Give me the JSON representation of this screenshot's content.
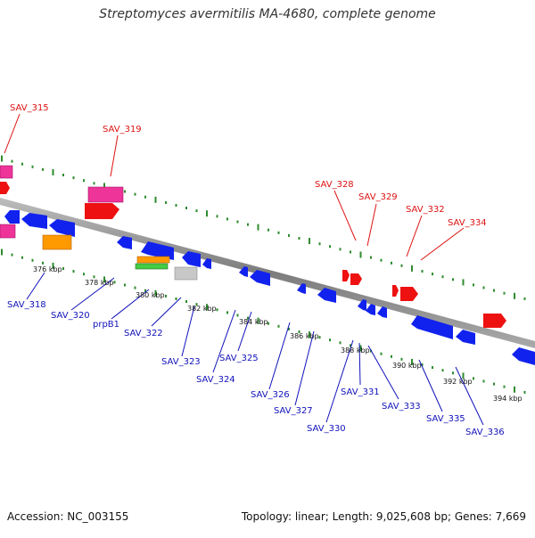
{
  "title": "Streptomyces avermitilis MA-4680, complete genome",
  "footer": {
    "accession": "Accession: NC_003155",
    "summary": "Topology: linear; Length: 9,025,608 bp; Genes: 7,669"
  },
  "colors": {
    "backbone": "#8a8a8a",
    "tick": "#2e8b2e",
    "forward_label": "#dd1111",
    "reverse_label": "#1111bb",
    "red": "#ee1111",
    "pink": "#ee3399",
    "blue": "#1122ee",
    "orange": "#ff9900",
    "green": "#44cc44",
    "gray": "#c8c8c8"
  },
  "ruler_labels": [
    "376 kbp",
    "378 kbp",
    "380 kbp",
    "382 kbp",
    "384 kbp",
    "386 kbp",
    "388 kbp",
    "390 kbp",
    "392 kbp",
    "394 kbp"
  ],
  "forward_labels": [
    "SAV_315",
    "SAV_319",
    "SAV_328",
    "SAV_329",
    "SAV_332",
    "SAV_334"
  ],
  "reverse_labels": [
    "SAV_318",
    "SAV_320",
    "prpB1",
    "SAV_322",
    "SAV_323",
    "SAV_324",
    "SAV_325",
    "SAV_326",
    "SAV_327",
    "SAV_330",
    "SAV_331",
    "SAV_333",
    "SAV_335",
    "SAV_336"
  ]
}
